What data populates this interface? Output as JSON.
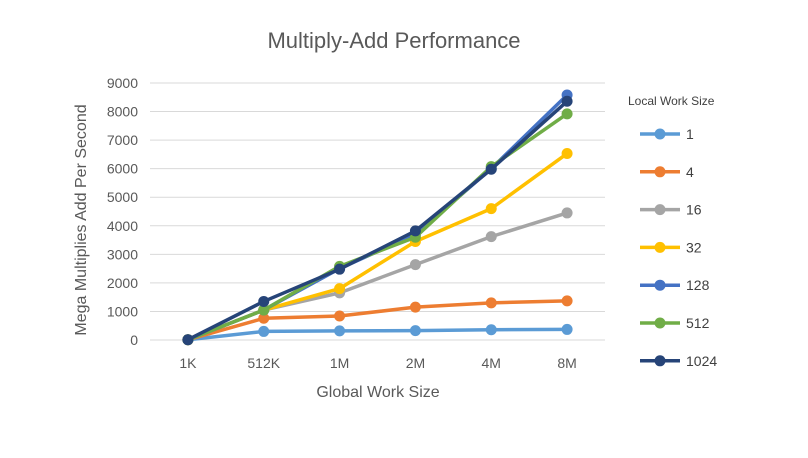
{
  "chart_data": {
    "type": "line",
    "title": "Multiply-Add Performance",
    "xlabel": "Global Work Size",
    "ylabel": "Mega Multiplies Add Per Second",
    "categories": [
      "1K",
      "512K",
      "1M",
      "2M",
      "4M",
      "8M"
    ],
    "ylim": [
      0,
      9000
    ],
    "yticks": [
      0,
      1000,
      2000,
      3000,
      4000,
      5000,
      6000,
      7000,
      8000,
      9000
    ],
    "grid": true,
    "legend": {
      "title": "Local Work Size",
      "placement": "right"
    },
    "series": [
      {
        "name": "1",
        "color": "#5B9BD5",
        "values": [
          10,
          300,
          320,
          330,
          360,
          370
        ]
      },
      {
        "name": "4",
        "color": "#ED7D31",
        "values": [
          10,
          760,
          840,
          1150,
          1300,
          1370
        ]
      },
      {
        "name": "16",
        "color": "#A5A5A5",
        "values": [
          10,
          1050,
          1650,
          2640,
          3620,
          4450
        ]
      },
      {
        "name": "32",
        "color": "#FFC000",
        "values": [
          10,
          1050,
          1800,
          3450,
          4600,
          6530
        ]
      },
      {
        "name": "128",
        "color": "#4472C4",
        "values": [
          10,
          1050,
          2500,
          3700,
          6000,
          8580
        ]
      },
      {
        "name": "512",
        "color": "#70AD47",
        "values": [
          10,
          1050,
          2580,
          3600,
          6070,
          7920
        ]
      },
      {
        "name": "1024",
        "color": "#264478",
        "values": [
          10,
          1350,
          2480,
          3820,
          5980,
          8360
        ]
      }
    ]
  }
}
